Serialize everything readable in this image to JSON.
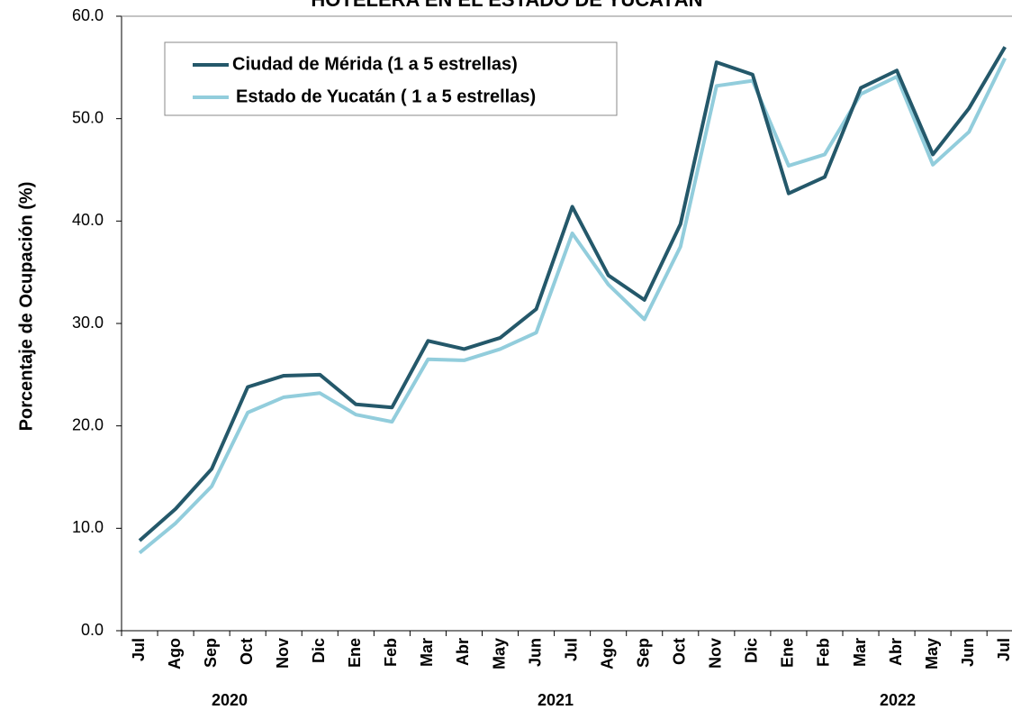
{
  "chart_data": {
    "type": "line",
    "title": "HOTELERA EN EL ESTADO DE YUCATÁN",
    "y_label": "Porcentaje de Ocupación (%)",
    "categories": [
      "Jul",
      "Ago",
      "Sep",
      "Oct",
      "Nov",
      "Dic",
      "Ene",
      "Feb",
      "Mar",
      "Abr",
      "May",
      "Jun",
      "Jul",
      "Ago",
      "Sep",
      "Oct",
      "Nov",
      "Dic",
      "Ene",
      "Feb",
      "Mar",
      "Abr",
      "May",
      "Jun",
      "Jul"
    ],
    "year_labels": [
      "2020",
      "2021",
      "2022"
    ],
    "series": [
      {
        "name": "Ciudad de Mérida (1 a 5 estrellas)",
        "color": "#24586a",
        "values": [
          8.8,
          11.9,
          15.8,
          23.8,
          24.9,
          25.0,
          22.1,
          21.8,
          28.3,
          27.5,
          28.6,
          31.4,
          41.4,
          34.7,
          32.3,
          39.7,
          55.5,
          54.3,
          42.7,
          44.3,
          53.0,
          54.7,
          46.5,
          51.0,
          57.0
        ]
      },
      {
        "name": "Estado de Yucatán ( 1 a 5 estrellas)",
        "color": "#92cddc",
        "values": [
          7.6,
          10.5,
          14.1,
          21.3,
          22.8,
          23.2,
          21.1,
          20.4,
          26.5,
          26.4,
          27.5,
          29.1,
          38.8,
          33.8,
          30.4,
          37.5,
          53.2,
          53.7,
          45.4,
          46.5,
          52.4,
          54.1,
          45.5,
          48.7,
          55.9
        ]
      }
    ],
    "ylim": [
      0,
      60
    ],
    "yticks": [
      {
        "value": 0,
        "label": "0.0"
      },
      {
        "value": 10,
        "label": "10.0"
      },
      {
        "value": 20,
        "label": "20.0"
      },
      {
        "value": 30,
        "label": "30.0"
      },
      {
        "value": 40,
        "label": "40.0"
      },
      {
        "value": 50,
        "label": "50.0"
      },
      {
        "value": 60,
        "label": "60.0"
      }
    ],
    "grid": false,
    "legend": "top-left"
  }
}
